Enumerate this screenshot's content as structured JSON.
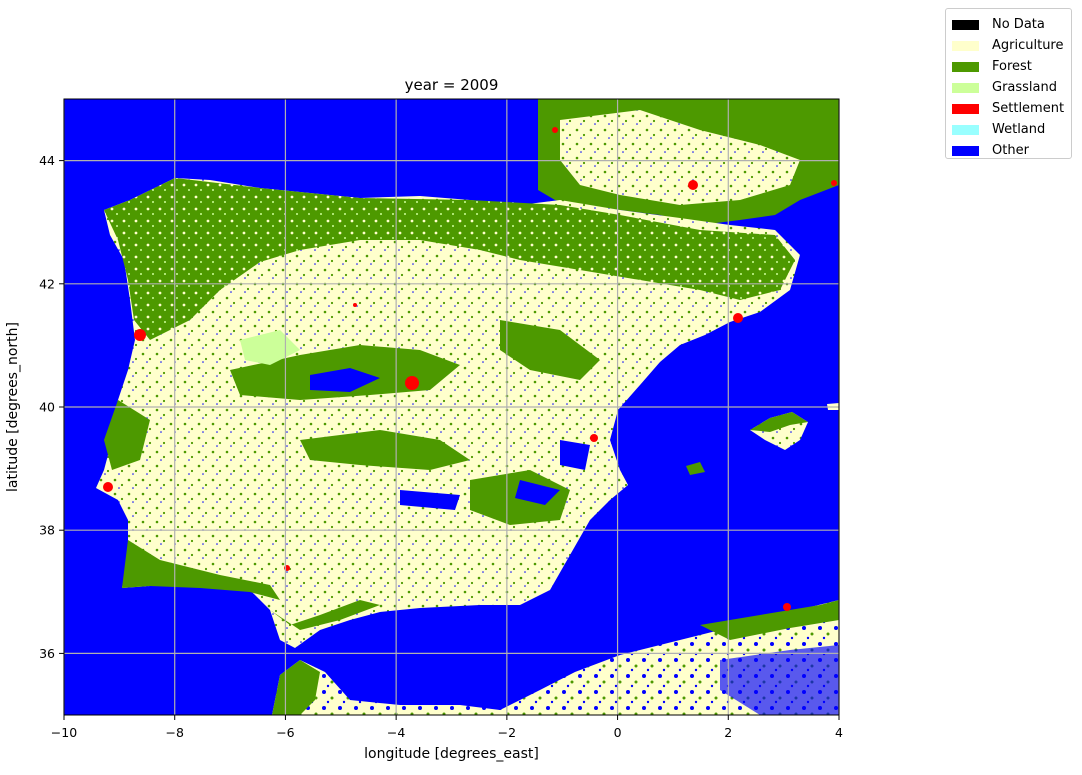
{
  "title": "year = 2009",
  "xlabel": "longitude [degrees_east]",
  "ylabel": "latitude [degrees_north]",
  "x_ticks": [
    "−10",
    "−8",
    "−6",
    "−4",
    "−2",
    "0",
    "2",
    "4"
  ],
  "y_ticks": [
    "44",
    "42",
    "40",
    "38",
    "36"
  ],
  "legend": [
    {
      "label": "No Data",
      "color": "#000000"
    },
    {
      "label": "Agriculture",
      "color": "#ffffcc"
    },
    {
      "label": "Forest",
      "color": "#4d9900"
    },
    {
      "label": "Grassland",
      "color": "#ccff99"
    },
    {
      "label": "Settlement",
      "color": "#ff0000"
    },
    {
      "label": "Wetland",
      "color": "#99ffff"
    },
    {
      "label": "Other",
      "color": "#0000ff"
    }
  ],
  "map": {
    "type": "land-cover raster",
    "x_range": [
      -10,
      4
    ],
    "y_range": [
      35,
      45
    ],
    "grid": true
  }
}
